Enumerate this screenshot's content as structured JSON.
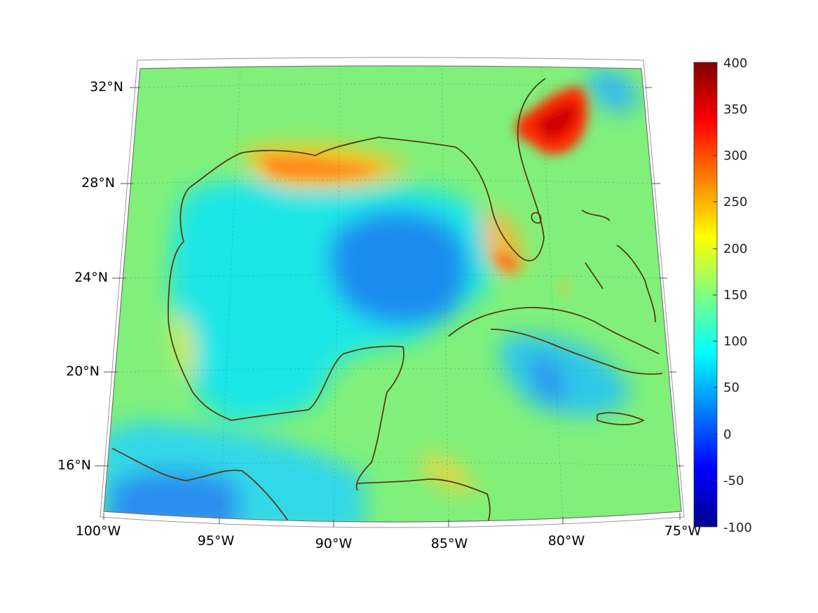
{
  "map": {
    "lon_labels": [
      "100°W",
      "95°W",
      "90°W",
      "85°W",
      "80°W",
      "75°W"
    ],
    "lat_labels": [
      "32°N",
      "28°N",
      "24°N",
      "20°N",
      "16°N"
    ],
    "colorbar": {
      "ticks": [
        "400",
        "350",
        "300",
        "250",
        "200",
        "150",
        "100",
        "50",
        "0",
        "-50",
        "-100"
      ],
      "min": -100,
      "max": 400,
      "colormap": "jet"
    },
    "coastline_color": "#5a3c10",
    "background_color": "#80f07a"
  }
}
